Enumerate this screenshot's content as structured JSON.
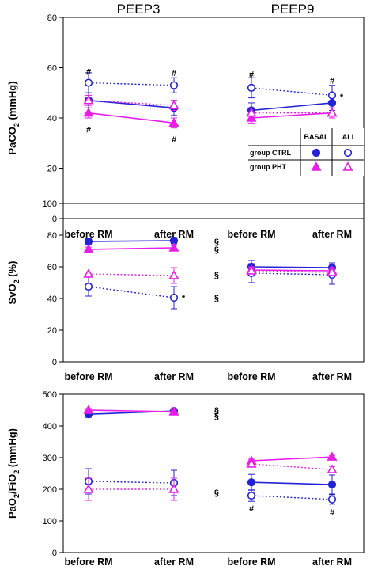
{
  "titles": [
    "PEEP3",
    "PEEP9"
  ],
  "colors": {
    "ctrl": "#2323d6",
    "pht": "#e81ee8"
  },
  "legend": {
    "col_basal": "BASAL",
    "col_ali": "ALI",
    "row_ctrl": "group CTRL",
    "row_pht": "group PHT"
  },
  "chart_data": [
    {
      "type": "line",
      "ylabel_main": "PaCO",
      "ylabel_sub": "2",
      "ylabel_tail": " (mmHg)",
      "ylim": [
        0,
        80
      ],
      "yticks": [
        0,
        20,
        40,
        60,
        80
      ],
      "categories": [
        "before RM",
        "after RM",
        "before RM",
        "after RM"
      ],
      "groups": [
        "PEEP3",
        "PEEP9"
      ],
      "series": [
        {
          "name": "group CTRL BASAL",
          "group": "ctrl",
          "phase": "basal",
          "values": [
            47,
            44,
            43,
            46
          ],
          "err": [
            3,
            3,
            3,
            3
          ]
        },
        {
          "name": "group CTRL ALI",
          "group": "ctrl",
          "phase": "ali",
          "values": [
            54,
            53,
            52,
            49
          ],
          "err": [
            4,
            3,
            4,
            4
          ]
        },
        {
          "name": "group PHT BASAL",
          "group": "pht",
          "phase": "basal",
          "values": [
            42,
            38,
            40,
            42
          ],
          "err": [
            2,
            2,
            2,
            2
          ]
        },
        {
          "name": "group PHT ALI",
          "group": "pht",
          "phase": "ali",
          "values": [
            47,
            45,
            42,
            42
          ],
          "err": [
            2,
            2,
            2,
            2
          ]
        }
      ],
      "annotations": [
        {
          "text": "#",
          "x": 0,
          "y": 58.5
        },
        {
          "text": "#",
          "x": 0,
          "y": 35.5
        },
        {
          "text": "#",
          "x": 1,
          "y": 58
        },
        {
          "text": "#",
          "x": 1,
          "y": 31.5
        },
        {
          "text": "#",
          "x": 2,
          "y": 57.5
        },
        {
          "text": "#",
          "x": 2,
          "y": 33.5
        },
        {
          "text": "#",
          "x": 3,
          "y": 55
        },
        {
          "text": "#",
          "x": 3,
          "y": 33.5
        },
        {
          "text": "*",
          "x": 3.12,
          "y": 48.5
        }
      ]
    },
    {
      "type": "line",
      "ylabel_main": "SvO",
      "ylabel_sub": "2",
      "ylabel_tail": " (%)",
      "ylim": [
        0,
        100
      ],
      "yticks": [
        0,
        20,
        40,
        60,
        80,
        100
      ],
      "categories": [
        "before RM",
        "after RM",
        "before RM",
        "after RM"
      ],
      "groups": [
        "PEEP3",
        "PEEP9"
      ],
      "series": [
        {
          "name": "group CTRL BASAL",
          "group": "ctrl",
          "phase": "basal",
          "values": [
            76,
            76.5,
            60,
            59.5
          ],
          "err": [
            2,
            2,
            4,
            3
          ]
        },
        {
          "name": "group CTRL ALI",
          "group": "ctrl",
          "phase": "ali",
          "values": [
            47.5,
            40.5,
            56,
            55
          ],
          "err": [
            6,
            7,
            6,
            6
          ]
        },
        {
          "name": "group PHT BASAL",
          "group": "pht",
          "phase": "basal",
          "values": [
            71,
            72,
            58,
            57.5
          ],
          "err": [
            1.5,
            1.5,
            2,
            2
          ]
        },
        {
          "name": "group PHT ALI",
          "group": "pht",
          "phase": "ali",
          "values": [
            55.5,
            54.5,
            57.5,
            56.5
          ],
          "err": [
            0,
            5,
            2,
            2
          ]
        }
      ],
      "annotations": [
        {
          "text": "§",
          "x": 1.55,
          "y": 76
        },
        {
          "text": "§",
          "x": 1.55,
          "y": 71
        },
        {
          "text": "§",
          "x": 1.55,
          "y": 55
        },
        {
          "text": "§",
          "x": 1.55,
          "y": 40.5
        },
        {
          "text": "*",
          "x": 1.12,
          "y": 40.5
        }
      ]
    },
    {
      "type": "line",
      "ylabel_main": "PaO",
      "ylabel_sub": "2",
      "ylabel_mid": "/FiO",
      "ylabel_sub2": "2",
      "ylabel_tail": " (mmHg)",
      "ylim": [
        0,
        500
      ],
      "yticks": [
        0,
        100,
        200,
        300,
        400,
        500
      ],
      "categories": [
        "before RM",
        "after RM",
        "before RM",
        "after RM"
      ],
      "groups": [
        "PEEP3",
        "PEEP9"
      ],
      "series": [
        {
          "name": "group CTRL BASAL",
          "group": "ctrl",
          "phase": "basal",
          "values": [
            437,
            447,
            222,
            215
          ],
          "err": [
            10,
            8,
            25,
            30
          ]
        },
        {
          "name": "group CTRL ALI",
          "group": "ctrl",
          "phase": "ali",
          "values": [
            225,
            220,
            180,
            168
          ],
          "err": [
            40,
            40,
            18,
            15
          ]
        },
        {
          "name": "group PHT BASAL",
          "group": "pht",
          "phase": "basal",
          "values": [
            450,
            445,
            290,
            302
          ],
          "err": [
            5,
            5,
            5,
            5
          ]
        },
        {
          "name": "group PHT ALI",
          "group": "pht",
          "phase": "ali",
          "values": [
            200,
            200,
            280,
            262
          ],
          "err": [
            35,
            35,
            10,
            10
          ]
        }
      ],
      "annotations": [
        {
          "text": "§",
          "x": 1.55,
          "y": 450
        },
        {
          "text": "§",
          "x": 1.55,
          "y": 432
        },
        {
          "text": "§",
          "x": 1.55,
          "y": 190
        },
        {
          "text": "#",
          "x": 2,
          "y": 140
        },
        {
          "text": "#",
          "x": 3,
          "y": 128
        }
      ]
    }
  ]
}
